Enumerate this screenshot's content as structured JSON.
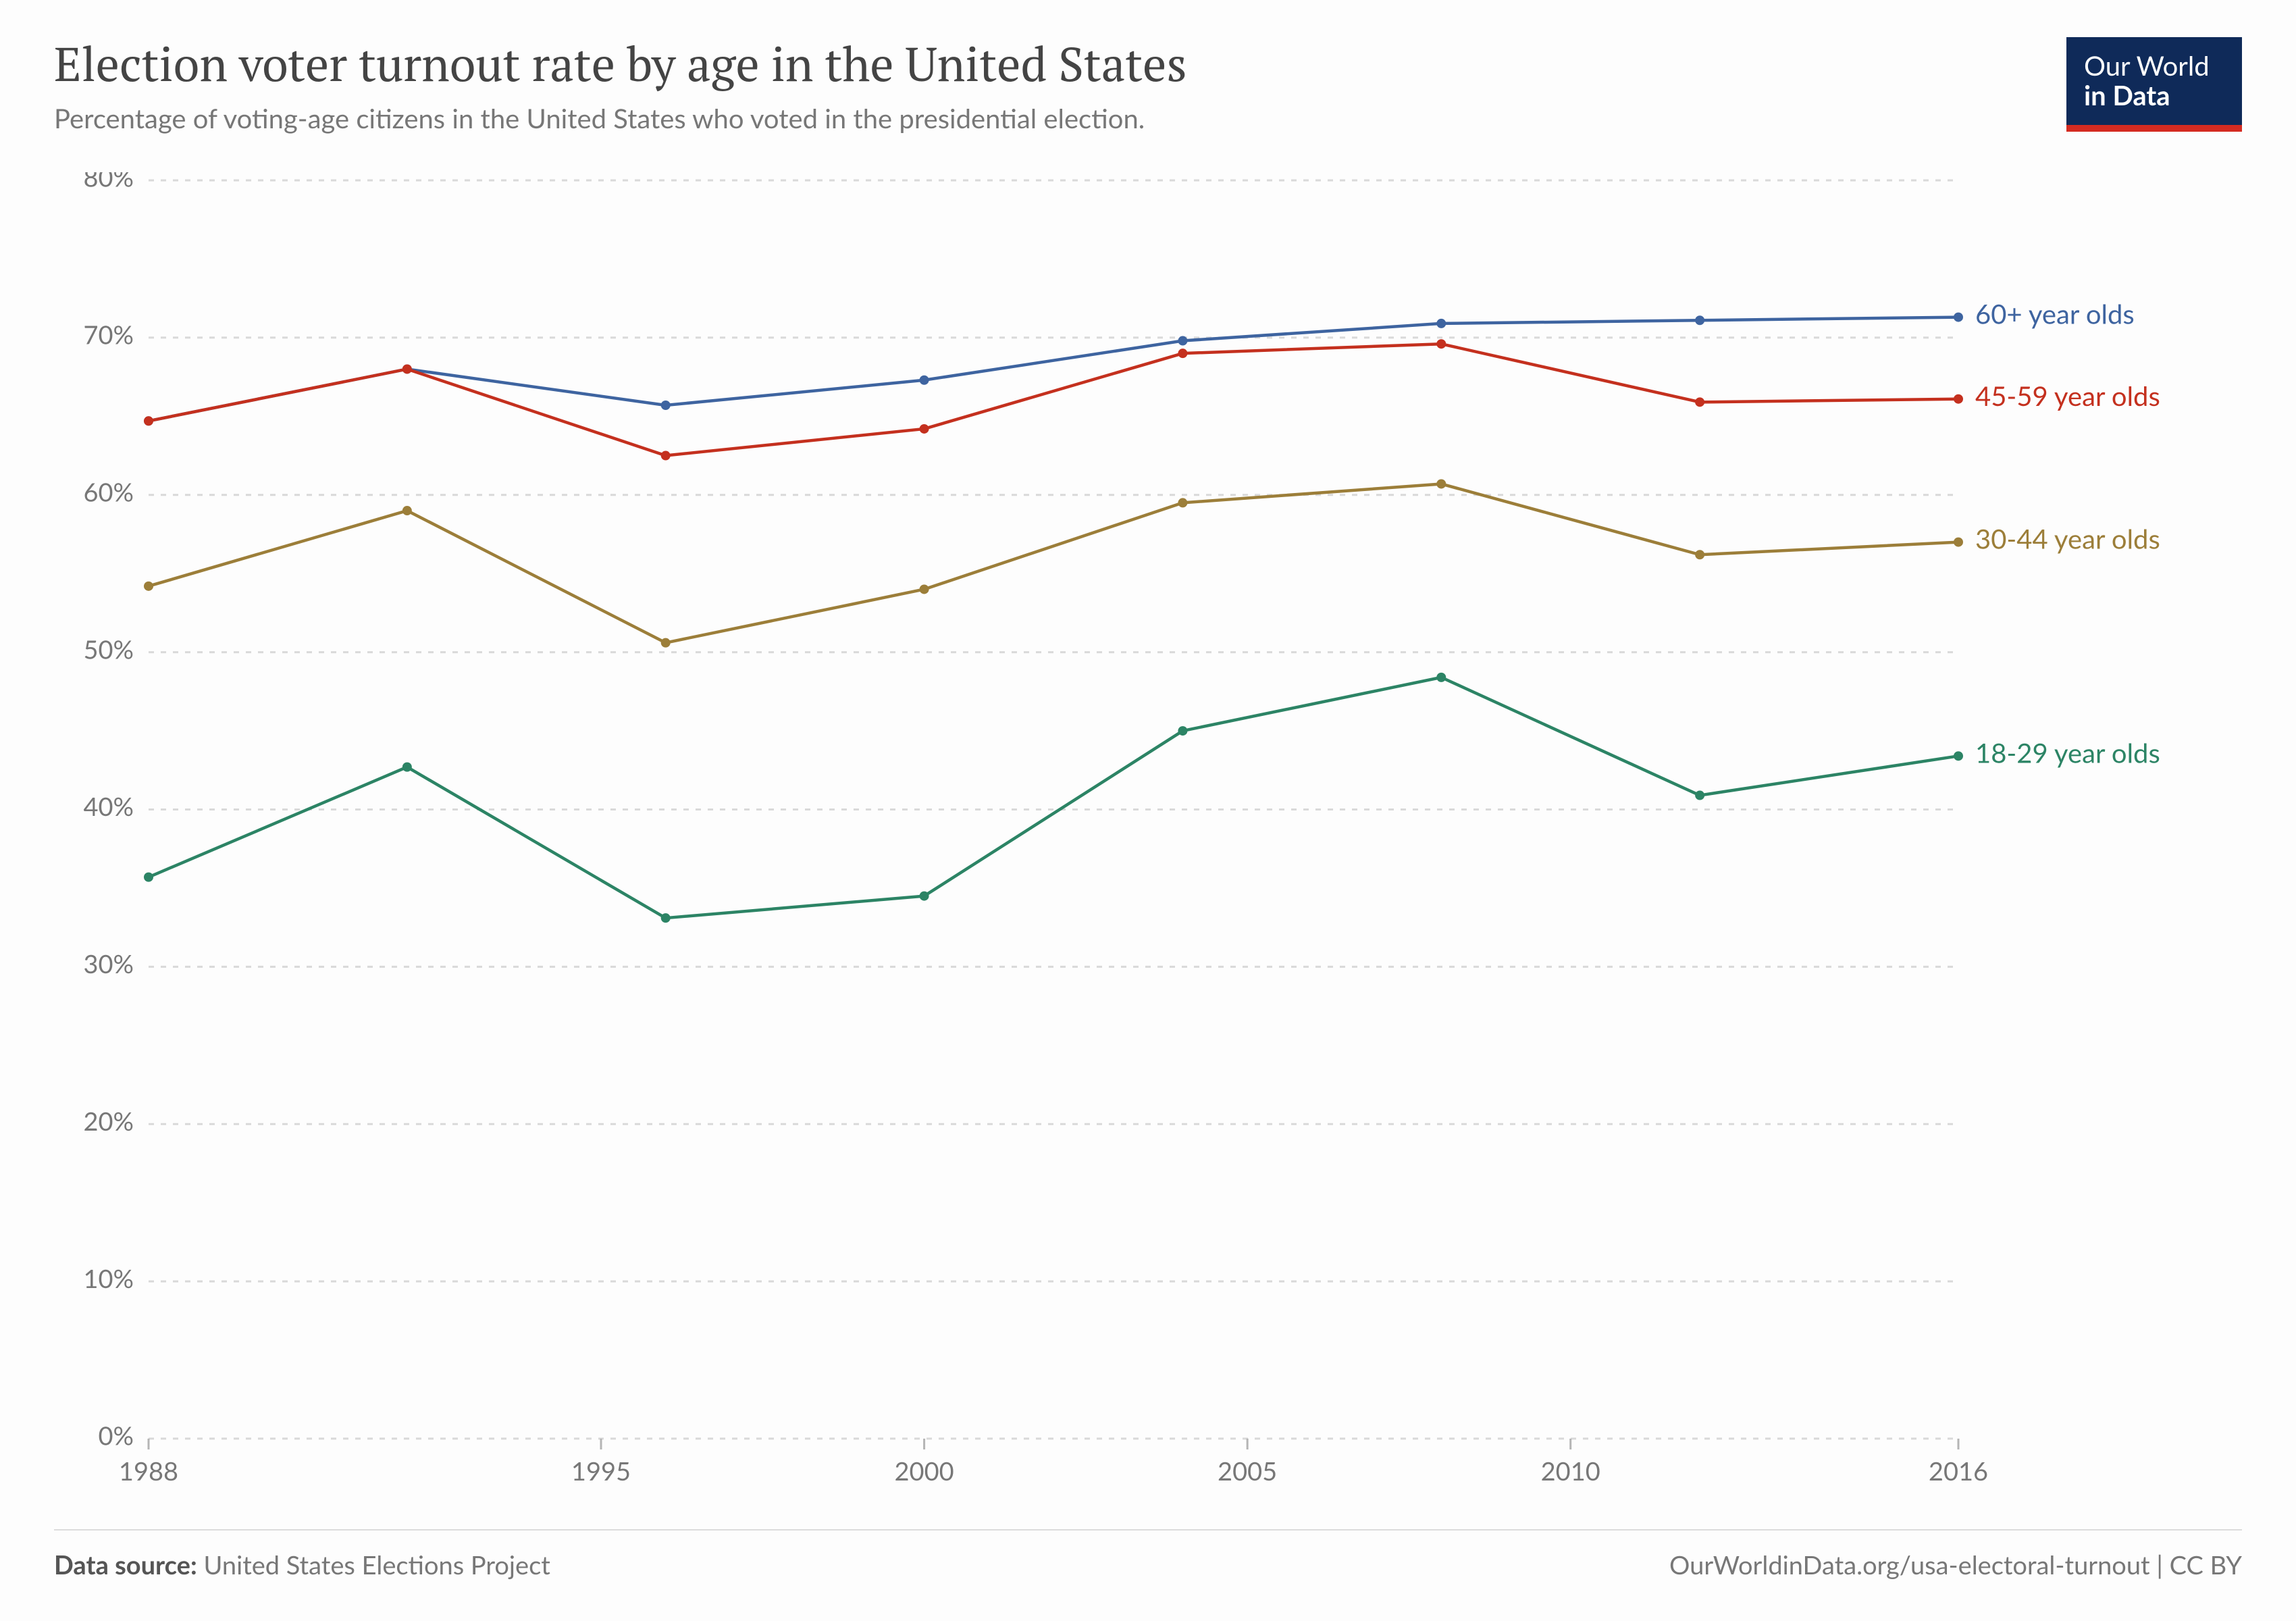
{
  "header": {
    "title": "Election voter turnout rate by age in the United States",
    "subtitle": "Percentage of voting-age citizens in the United States who voted in the presidential election."
  },
  "logo": {
    "line1": "Our World",
    "line2": "in Data"
  },
  "chart": {
    "type": "line",
    "background_color": "#fdfdfd",
    "grid_color": "#d9d9d9",
    "axis_text_color": "#777777",
    "x": {
      "min": 1988,
      "max": 2016,
      "ticks": [
        1988,
        1995,
        2000,
        2005,
        2010,
        2016
      ],
      "tick_labels": [
        "1988",
        "1995",
        "2000",
        "2005",
        "2010",
        "2016"
      ]
    },
    "y": {
      "min": 0,
      "max": 80,
      "ticks": [
        0,
        10,
        20,
        30,
        40,
        50,
        60,
        70,
        80
      ],
      "tick_labels": [
        "0%",
        "10%",
        "20%",
        "30%",
        "40%",
        "50%",
        "60%",
        "70%",
        "80%"
      ]
    },
    "series": [
      {
        "label": "60+ year olds",
        "color": "#3e64a0",
        "x": [
          1988,
          1992,
          1996,
          2000,
          2004,
          2008,
          2012,
          2016
        ],
        "y": [
          64.7,
          68.0,
          65.7,
          67.3,
          69.8,
          70.9,
          71.1,
          71.3
        ]
      },
      {
        "label": "45-59 year olds",
        "color": "#c4301e",
        "x": [
          1988,
          1992,
          1996,
          2000,
          2004,
          2008,
          2012,
          2016
        ],
        "y": [
          64.7,
          68.0,
          62.5,
          64.2,
          69.0,
          69.6,
          65.9,
          66.1
        ]
      },
      {
        "label": "30-44 year olds",
        "color": "#9c7e39",
        "x": [
          1988,
          1992,
          1996,
          2000,
          2004,
          2008,
          2012,
          2016
        ],
        "y": [
          54.2,
          59.0,
          50.6,
          54.0,
          59.5,
          60.7,
          56.2,
          57.0
        ]
      },
      {
        "label": "18-29 year olds",
        "color": "#2c8465",
        "x": [
          1988,
          1992,
          1996,
          2000,
          2004,
          2008,
          2012,
          2016
        ],
        "y": [
          35.7,
          42.7,
          33.1,
          34.5,
          45.0,
          48.4,
          40.9,
          43.4
        ]
      }
    ],
    "line_width": 4.5,
    "marker_radius": 7
  },
  "footer": {
    "source_label": "Data source:",
    "source_value": "United States Elections Project",
    "credit": "OurWorldinData.org/usa-electoral-turnout | CC BY"
  }
}
